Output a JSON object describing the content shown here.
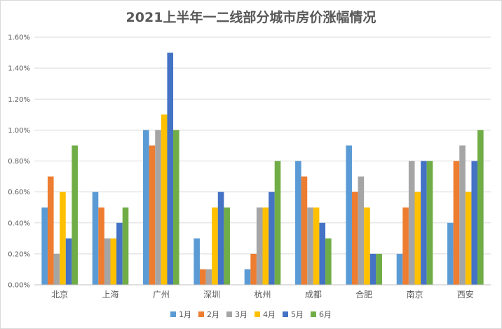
{
  "chart_data": {
    "type": "bar",
    "title": "2021上半年一二线部分城市房价涨幅情况",
    "xlabel": "",
    "ylabel": "",
    "ylim": [
      0,
      1.6
    ],
    "yticks": [
      "0.00%",
      "0.20%",
      "0.40%",
      "0.60%",
      "0.80%",
      "1.00%",
      "1.20%",
      "1.40%",
      "1.60%"
    ],
    "categories": [
      "北京",
      "上海",
      "广州",
      "深圳",
      "杭州",
      "成都",
      "合肥",
      "南京",
      "西安"
    ],
    "series": [
      {
        "name": "1月",
        "color": "#5b9bd5",
        "values": [
          0.5,
          0.6,
          1.0,
          0.3,
          0.1,
          0.8,
          0.9,
          0.2,
          0.4
        ]
      },
      {
        "name": "2月",
        "color": "#ed7d31",
        "values": [
          0.7,
          0.5,
          0.9,
          0.1,
          0.2,
          0.7,
          0.6,
          0.5,
          0.8
        ]
      },
      {
        "name": "3月",
        "color": "#a5a5a5",
        "values": [
          0.2,
          0.3,
          1.0,
          0.1,
          0.5,
          0.5,
          0.7,
          0.8,
          0.9
        ]
      },
      {
        "name": "4月",
        "color": "#ffc000",
        "values": [
          0.6,
          0.3,
          1.1,
          0.5,
          0.5,
          0.5,
          0.5,
          0.6,
          0.6
        ]
      },
      {
        "name": "5月",
        "color": "#4472c4",
        "values": [
          0.3,
          0.4,
          1.5,
          0.6,
          0.6,
          0.4,
          0.2,
          0.8,
          0.8
        ]
      },
      {
        "name": "6月",
        "color": "#70ad47",
        "values": [
          0.9,
          0.5,
          1.0,
          0.5,
          0.8,
          0.3,
          0.2,
          0.8,
          1.0
        ]
      }
    ],
    "grid": true,
    "legend": "bottom"
  }
}
